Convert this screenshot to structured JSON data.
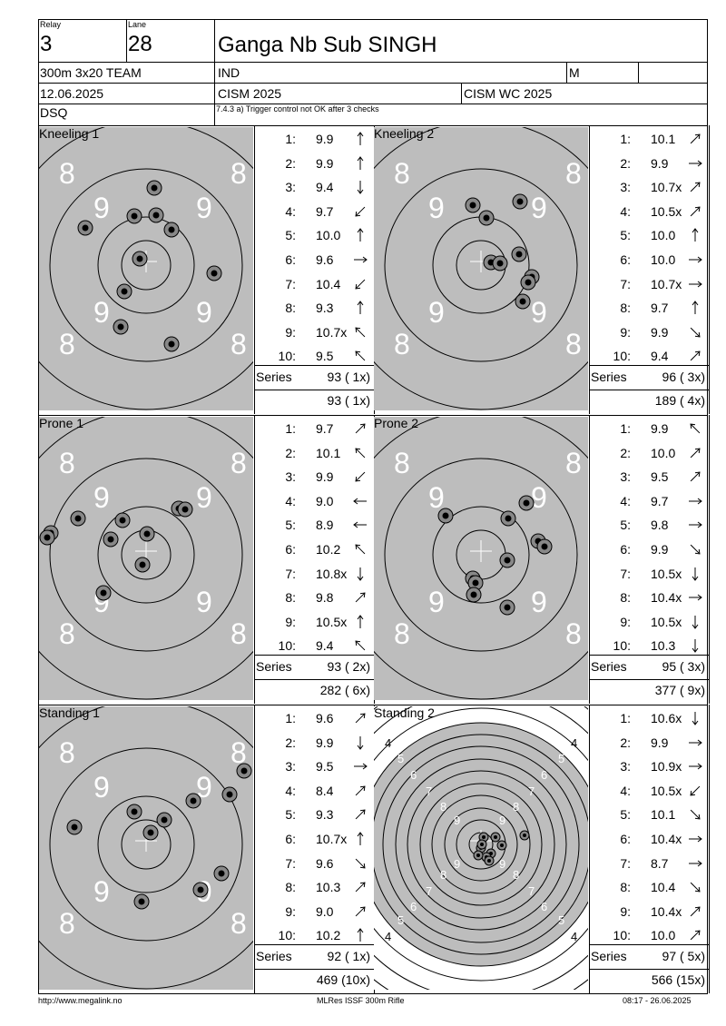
{
  "header": {
    "relay_label": "Relay",
    "relay_value": "3",
    "lane_label": "Lane",
    "lane_value": "28",
    "name": "Ganga Nb Sub SINGH",
    "event": "300m 3x20 TEAM",
    "nation": "IND",
    "gender": "M",
    "date": "12.06.2025",
    "competition": "CISM 2025",
    "competition2": "CISM WC 2025",
    "status": "DSQ",
    "remark": "7.4.3 a) Trigger control not OK after 3 checks"
  },
  "panels": [
    {
      "title": "Kneeling 1",
      "shots": [
        {
          "n": "1:",
          "v": "9.9",
          "arrow": "N"
        },
        {
          "n": "2:",
          "v": "9.9",
          "arrow": "N"
        },
        {
          "n": "3:",
          "v": "9.4",
          "arrow": "S"
        },
        {
          "n": "4:",
          "v": "9.7",
          "arrow": "SW"
        },
        {
          "n": "5:",
          "v": "10.0",
          "arrow": "N"
        },
        {
          "n": "6:",
          "v": "9.6",
          "arrow": "E"
        },
        {
          "n": "7:",
          "v": "10.4",
          "arrow": "SW"
        },
        {
          "n": "8:",
          "v": "9.3",
          "arrow": "N"
        },
        {
          "n": "9:",
          "v": "10.7x",
          "arrow": "NW"
        },
        {
          "n": "10:",
          "v": "9.5",
          "arrow": "NW"
        }
      ],
      "series_label": "Series",
      "series": "93 ( 1x)",
      "total": "93 ( 1x)"
    },
    {
      "title": "Kneeling 2",
      "shots": [
        {
          "n": "1:",
          "v": "10.1",
          "arrow": "NE"
        },
        {
          "n": "2:",
          "v": "9.9",
          "arrow": "E"
        },
        {
          "n": "3:",
          "v": "10.7x",
          "arrow": "NE"
        },
        {
          "n": "4:",
          "v": "10.5x",
          "arrow": "NE"
        },
        {
          "n": "5:",
          "v": "10.0",
          "arrow": "N"
        },
        {
          "n": "6:",
          "v": "10.0",
          "arrow": "E"
        },
        {
          "n": "7:",
          "v": "10.7x",
          "arrow": "E"
        },
        {
          "n": "8:",
          "v": "9.7",
          "arrow": "N"
        },
        {
          "n": "9:",
          "v": "9.9",
          "arrow": "SE"
        },
        {
          "n": "10:",
          "v": "9.4",
          "arrow": "NE"
        }
      ],
      "series_label": "Series",
      "series": "96 ( 3x)",
      "total": "189 ( 4x)"
    },
    {
      "title": "Prone 1",
      "shots": [
        {
          "n": "1:",
          "v": "9.7",
          "arrow": "NE"
        },
        {
          "n": "2:",
          "v": "10.1",
          "arrow": "NW"
        },
        {
          "n": "3:",
          "v": "9.9",
          "arrow": "SW"
        },
        {
          "n": "4:",
          "v": "9.0",
          "arrow": "W"
        },
        {
          "n": "5:",
          "v": "8.9",
          "arrow": "W"
        },
        {
          "n": "6:",
          "v": "10.2",
          "arrow": "NW"
        },
        {
          "n": "7:",
          "v": "10.8x",
          "arrow": "S"
        },
        {
          "n": "8:",
          "v": "9.8",
          "arrow": "NE"
        },
        {
          "n": "9:",
          "v": "10.5x",
          "arrow": "N"
        },
        {
          "n": "10:",
          "v": "9.4",
          "arrow": "NW"
        }
      ],
      "series_label": "Series",
      "series": "93 ( 2x)",
      "total": "282 ( 6x)"
    },
    {
      "title": "Prone 2",
      "shots": [
        {
          "n": "1:",
          "v": "9.9",
          "arrow": "NW"
        },
        {
          "n": "2:",
          "v": "10.0",
          "arrow": "NE"
        },
        {
          "n": "3:",
          "v": "9.5",
          "arrow": "NE"
        },
        {
          "n": "4:",
          "v": "9.7",
          "arrow": "E"
        },
        {
          "n": "5:",
          "v": "9.8",
          "arrow": "E"
        },
        {
          "n": "6:",
          "v": "9.9",
          "arrow": "SE"
        },
        {
          "n": "7:",
          "v": "10.5x",
          "arrow": "S"
        },
        {
          "n": "8:",
          "v": "10.4x",
          "arrow": "E"
        },
        {
          "n": "9:",
          "v": "10.5x",
          "arrow": "S"
        },
        {
          "n": "10:",
          "v": "10.3",
          "arrow": "S"
        }
      ],
      "series_label": "Series",
      "series": "95 ( 3x)",
      "total": "377 ( 9x)"
    },
    {
      "title": "Standing 1",
      "shots": [
        {
          "n": "1:",
          "v": "9.6",
          "arrow": "NE"
        },
        {
          "n": "2:",
          "v": "9.9",
          "arrow": "S"
        },
        {
          "n": "3:",
          "v": "9.5",
          "arrow": "E"
        },
        {
          "n": "4:",
          "v": "8.4",
          "arrow": "NE"
        },
        {
          "n": "5:",
          "v": "9.3",
          "arrow": "NE"
        },
        {
          "n": "6:",
          "v": "10.7x",
          "arrow": "N"
        },
        {
          "n": "7:",
          "v": "9.6",
          "arrow": "SE"
        },
        {
          "n": "8:",
          "v": "10.3",
          "arrow": "NE"
        },
        {
          "n": "9:",
          "v": "9.0",
          "arrow": "NE"
        },
        {
          "n": "10:",
          "v": "10.2",
          "arrow": "N"
        }
      ],
      "series_label": "Series",
      "series": "92 ( 1x)",
      "total": "469 (10x)"
    },
    {
      "title": "Standing 2",
      "shots": [
        {
          "n": "1:",
          "v": "10.6x",
          "arrow": "S"
        },
        {
          "n": "2:",
          "v": "9.9",
          "arrow": "E"
        },
        {
          "n": "3:",
          "v": "10.9x",
          "arrow": "E"
        },
        {
          "n": "4:",
          "v": "10.5x",
          "arrow": "SW"
        },
        {
          "n": "5:",
          "v": "10.1",
          "arrow": "SE"
        },
        {
          "n": "6:",
          "v": "10.4x",
          "arrow": "E"
        },
        {
          "n": "7:",
          "v": "8.7",
          "arrow": "E"
        },
        {
          "n": "8:",
          "v": "10.4",
          "arrow": "SE"
        },
        {
          "n": "9:",
          "v": "10.4x",
          "arrow": "NE"
        },
        {
          "n": "10:",
          "v": "10.0",
          "arrow": "NE"
        }
      ],
      "series_label": "Series",
      "series": "97 ( 5x)",
      "total": "566 (15x)"
    }
  ],
  "footer": {
    "url": "http://www.megalink.no",
    "software": "MLRes ISSF 300m Rifle",
    "timestamp": "08:17 - 26.06.2025"
  },
  "colors": {
    "target_gray": "#bdbdbd",
    "hole_outer": "#888888",
    "hole_inner": "#000000"
  }
}
